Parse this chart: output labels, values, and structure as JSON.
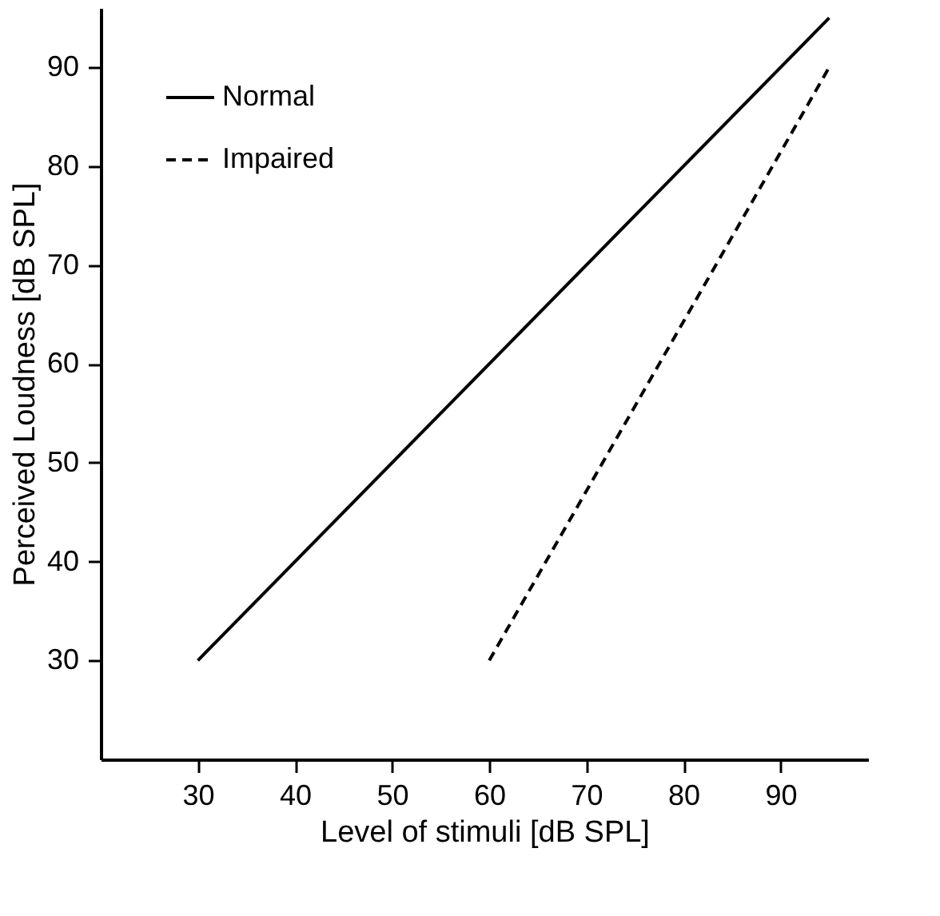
{
  "chart_data": {
    "type": "line",
    "xlabel": "Level of stimuli [dB SPL]",
    "ylabel": "Perceived Loudness [dB SPL]",
    "series": [
      {
        "name": "Normal",
        "color": "#000000",
        "line_style": "solid",
        "x": [
          30,
          95
        ],
        "values": [
          30,
          95
        ]
      },
      {
        "name": "Impaired",
        "color": "#000000",
        "line_style": "dashed",
        "x": [
          60,
          95
        ],
        "values": [
          30,
          90
        ]
      }
    ],
    "xlim": [
      20,
      99
    ],
    "ylim": [
      20,
      96
    ],
    "xticks": [
      30,
      40,
      50,
      60,
      70,
      80,
      90
    ],
    "yticks": [
      30,
      40,
      50,
      60,
      70,
      80,
      90
    ],
    "grid": false,
    "legend": "top left",
    "marker": "none"
  }
}
